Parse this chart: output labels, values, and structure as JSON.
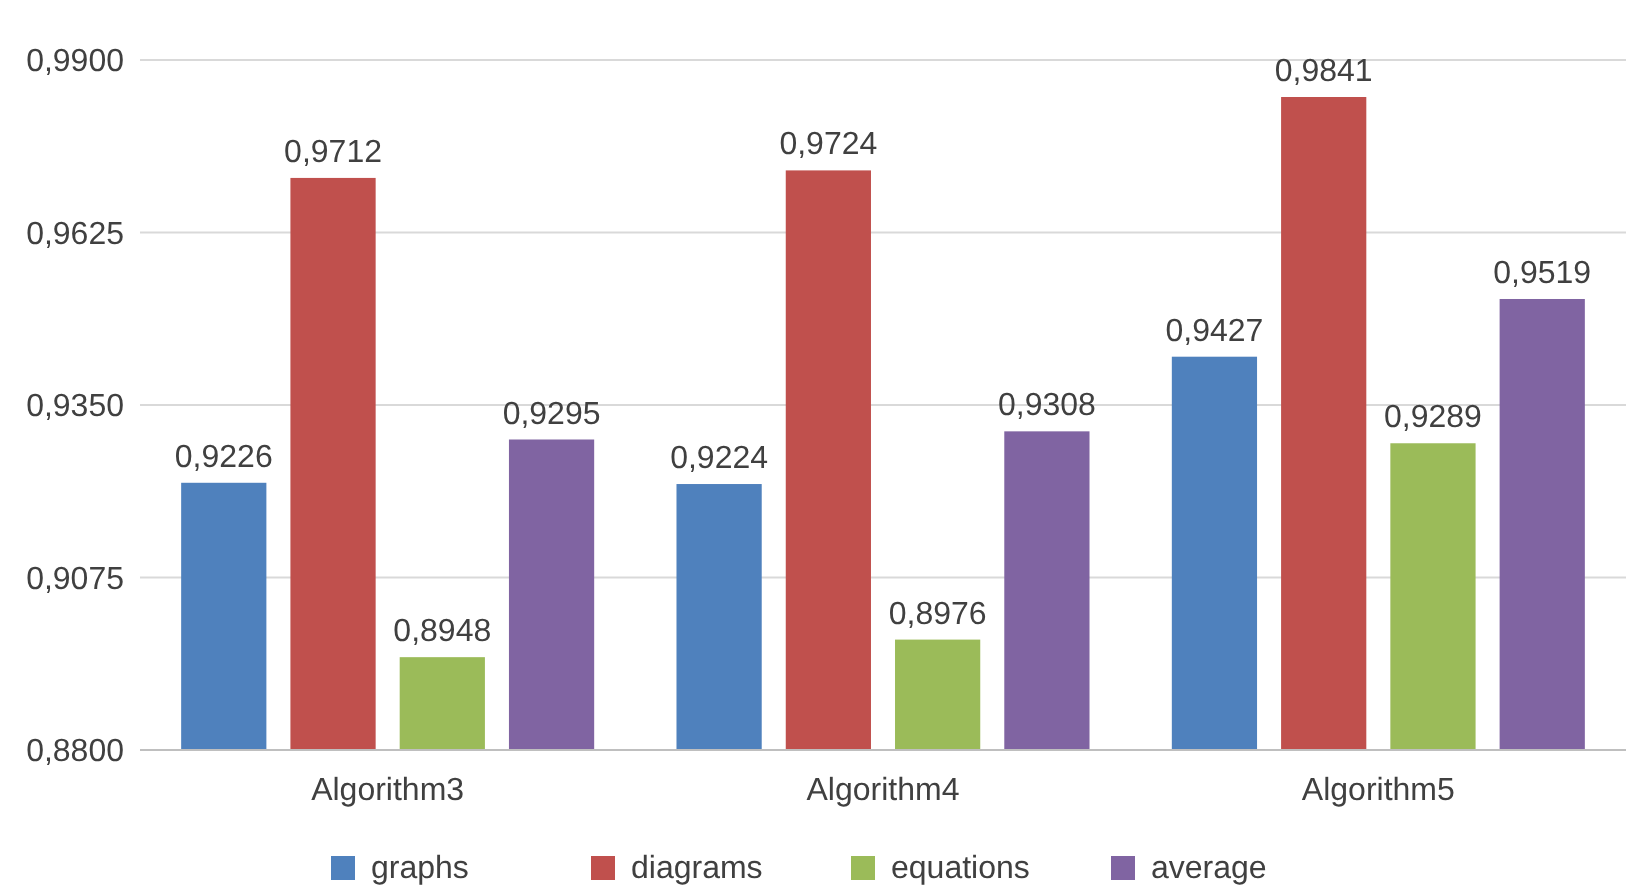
{
  "chart_data": {
    "type": "bar",
    "categories": [
      "Algorithm3",
      "Algorithm4",
      "Algorithm5"
    ],
    "series": [
      {
        "name": "graphs",
        "color": "#4f81bd",
        "values": [
          0.9226,
          0.9224,
          0.9427
        ],
        "value_labels": [
          "0,9226",
          "0,9224",
          "0,9427"
        ]
      },
      {
        "name": "diagrams",
        "color": "#c0504d",
        "values": [
          0.9712,
          0.9724,
          0.9841
        ],
        "value_labels": [
          "0,9712",
          "0,9724",
          "0,9841"
        ]
      },
      {
        "name": "equations",
        "color": "#9bbb59",
        "values": [
          0.8948,
          0.8976,
          0.9289
        ],
        "value_labels": [
          "0,8948",
          "0,8976",
          "0,9289"
        ]
      },
      {
        "name": "average",
        "color": "#8064a2",
        "values": [
          0.9295,
          0.9308,
          0.9519
        ],
        "value_labels": [
          "0,9295",
          "0,9308",
          "0,9519"
        ]
      }
    ],
    "ylim": [
      0.88,
      0.99
    ],
    "yticks": [
      {
        "value": 0.88,
        "label": "0,8800"
      },
      {
        "value": 0.9075,
        "label": "0,9075"
      },
      {
        "value": 0.935,
        "label": "0,9350"
      },
      {
        "value": 0.9625,
        "label": "0,9625"
      },
      {
        "value": 0.99,
        "label": "0,9900"
      }
    ],
    "grid": true,
    "legend": "bottom"
  }
}
